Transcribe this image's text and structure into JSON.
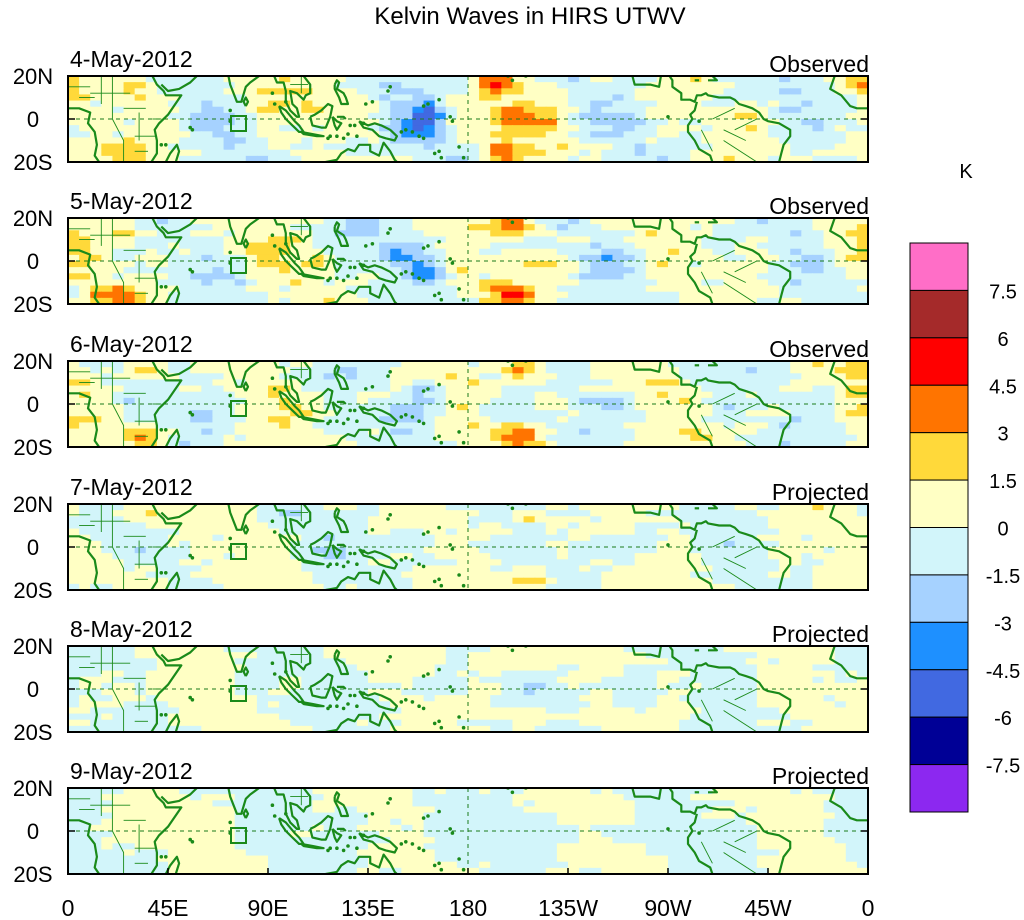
{
  "chart_data": {
    "type": "heatmap",
    "title": "Kelvin Waves in HIRS UTWV",
    "units": "K",
    "x_ticks": [
      "0",
      "45E",
      "90E",
      "135E",
      "180",
      "135W",
      "90W",
      "45W",
      "0"
    ],
    "x_range_deg_east": [
      0,
      360
    ],
    "y_ticks": [
      "20N",
      "0",
      "20S"
    ],
    "y_range_deg": [
      -20,
      20
    ],
    "colorbar": {
      "levels": [
        "7.5",
        "6",
        "4.5",
        "3",
        "1.5",
        "0",
        "-1.5",
        "-3",
        "-4.5",
        "-6",
        "-7.5"
      ],
      "colors": [
        "#ff6ec7",
        "#a52a2a",
        "#ff0000",
        "#ff7400",
        "#ffd93a",
        "#ffffc4",
        "#d2f5fa",
        "#a6d2ff",
        "#1e90ff",
        "#4169e1",
        "#000096",
        "#8c28f0"
      ]
    },
    "panels": [
      {
        "date": "4-May-2012",
        "label": "Observed"
      },
      {
        "date": "5-May-2012",
        "label": "Observed"
      },
      {
        "date": "6-May-2012",
        "label": "Observed"
      },
      {
        "date": "7-May-2012",
        "label": "Projected"
      },
      {
        "date": "8-May-2012",
        "label": "Projected"
      },
      {
        "date": "9-May-2012",
        "label": "Projected"
      }
    ]
  }
}
